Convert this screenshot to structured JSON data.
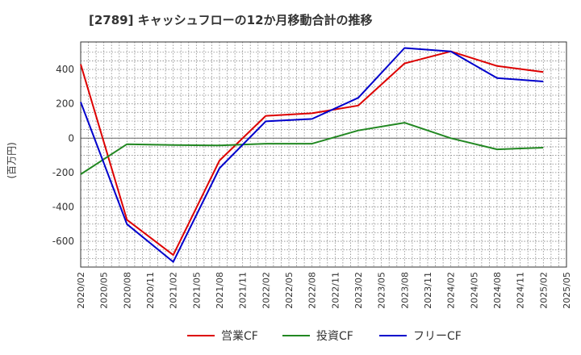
{
  "chart_data": {
    "type": "line",
    "title": "[2789]  キャッシュフローの12か月移動合計の推移",
    "ylabel": "(百万円)",
    "xlabel": "",
    "ylim": [
      -750,
      560
    ],
    "yticks": [
      400,
      200,
      0,
      -200,
      -400,
      -600
    ],
    "xticks": [
      "2020/02",
      "2020/05",
      "2020/08",
      "2020/11",
      "2021/02",
      "2021/05",
      "2021/08",
      "2021/11",
      "2022/02",
      "2022/05",
      "2022/08",
      "2022/11",
      "2023/02",
      "2023/05",
      "2023/08",
      "2023/11",
      "2024/02",
      "2024/05",
      "2024/08",
      "2024/11",
      "2025/02",
      "2025/05"
    ],
    "grid": true,
    "legend_position": "bottom",
    "series": [
      {
        "name": "営業CF",
        "color": "#dd0000",
        "points": [
          [
            "2020/02",
            430
          ],
          [
            "2020/08",
            -475
          ],
          [
            "2021/02",
            -680
          ],
          [
            "2021/08",
            -130
          ],
          [
            "2022/02",
            130
          ],
          [
            "2022/08",
            145
          ],
          [
            "2023/02",
            190
          ],
          [
            "2023/08",
            435
          ],
          [
            "2024/02",
            505
          ],
          [
            "2024/08",
            420
          ],
          [
            "2025/02",
            385
          ]
        ]
      },
      {
        "name": "投資CF",
        "color": "#228822",
        "points": [
          [
            "2020/02",
            -210
          ],
          [
            "2020/08",
            -35
          ],
          [
            "2021/02",
            -40
          ],
          [
            "2021/08",
            -42
          ],
          [
            "2022/02",
            -32
          ],
          [
            "2022/08",
            -32
          ],
          [
            "2023/02",
            45
          ],
          [
            "2023/08",
            90
          ],
          [
            "2024/02",
            0
          ],
          [
            "2024/08",
            -65
          ],
          [
            "2025/02",
            -55
          ]
        ]
      },
      {
        "name": "フリーCF",
        "color": "#0000cc",
        "points": [
          [
            "2020/02",
            210
          ],
          [
            "2020/08",
            -500
          ],
          [
            "2021/02",
            -720
          ],
          [
            "2021/08",
            -175
          ],
          [
            "2022/02",
            98
          ],
          [
            "2022/08",
            112
          ],
          [
            "2023/02",
            235
          ],
          [
            "2023/08",
            525
          ],
          [
            "2024/02",
            505
          ],
          [
            "2024/08",
            350
          ],
          [
            "2025/02",
            330
          ]
        ]
      }
    ]
  }
}
